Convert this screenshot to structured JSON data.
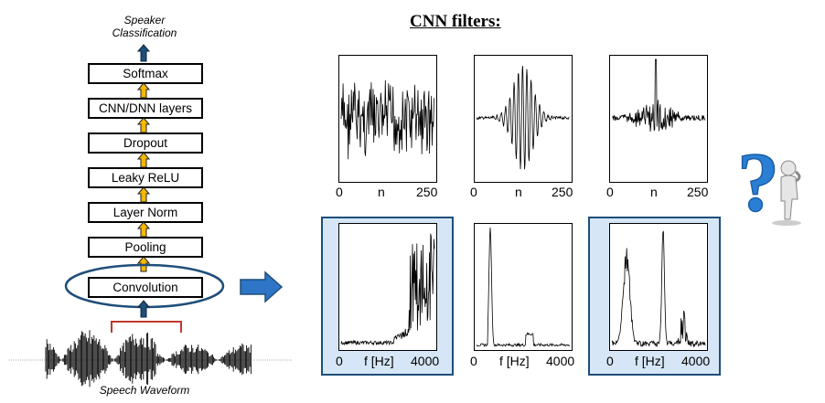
{
  "left_stack": {
    "top_label": [
      "Speaker",
      "Classification"
    ],
    "layers": [
      "Softmax",
      "CNN/DNN layers",
      "Dropout",
      "Leaky ReLU",
      "Layer Norm",
      "Pooling",
      "Convolution"
    ],
    "bottom_label": "Speech Waveform"
  },
  "right": {
    "title": "CNN filters:",
    "time_ticks": [
      "0",
      "n",
      "250"
    ],
    "freq_ticks": [
      "0",
      "f [Hz]",
      "4000"
    ]
  },
  "colors": {
    "arrow_fill": "#f5b800",
    "arrow_dark": "#1f4e79",
    "panel": "#d6e6f6",
    "bracket": "#c0392b",
    "question": "#2a7fd4"
  }
}
